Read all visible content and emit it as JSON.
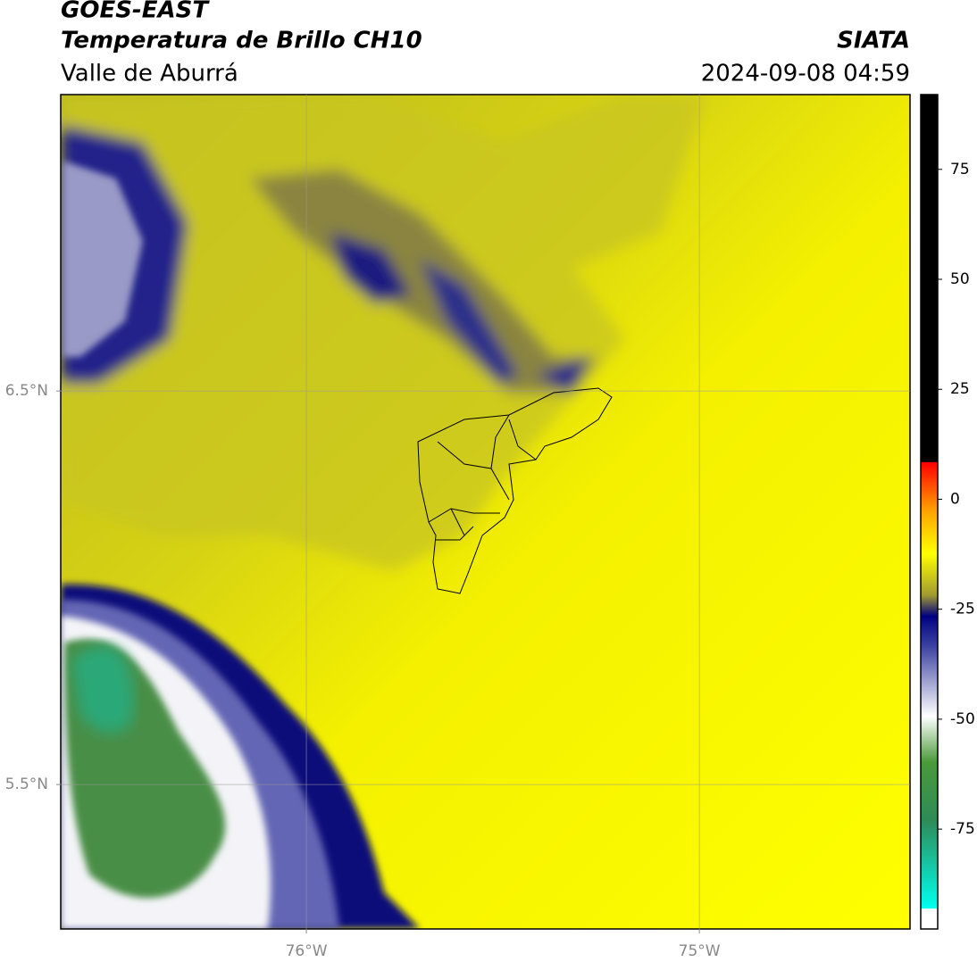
{
  "header": {
    "title": "GOES-EAST",
    "subtitle": "Temperatura de Brillo CH10",
    "region": "Valle de Aburrá",
    "source": "SIATA",
    "datetime": "2024-09-08 04:59"
  },
  "map": {
    "lonlim": [
      -76.625,
      -74.464
    ],
    "latlim": [
      5.133,
      7.253
    ],
    "lon_ticks": [
      {
        "value": -76,
        "label": "76°W"
      },
      {
        "value": -75,
        "label": "75°W"
      }
    ],
    "lat_ticks": [
      {
        "value": 6.5,
        "label": "6.5°N"
      },
      {
        "value": 5.5,
        "label": "5.5°N"
      }
    ]
  },
  "colorbar": {
    "lim": [
      -97.7,
      92
    ],
    "ticks": [
      75,
      50,
      25,
      0,
      -25,
      -50,
      -75
    ]
  }
}
